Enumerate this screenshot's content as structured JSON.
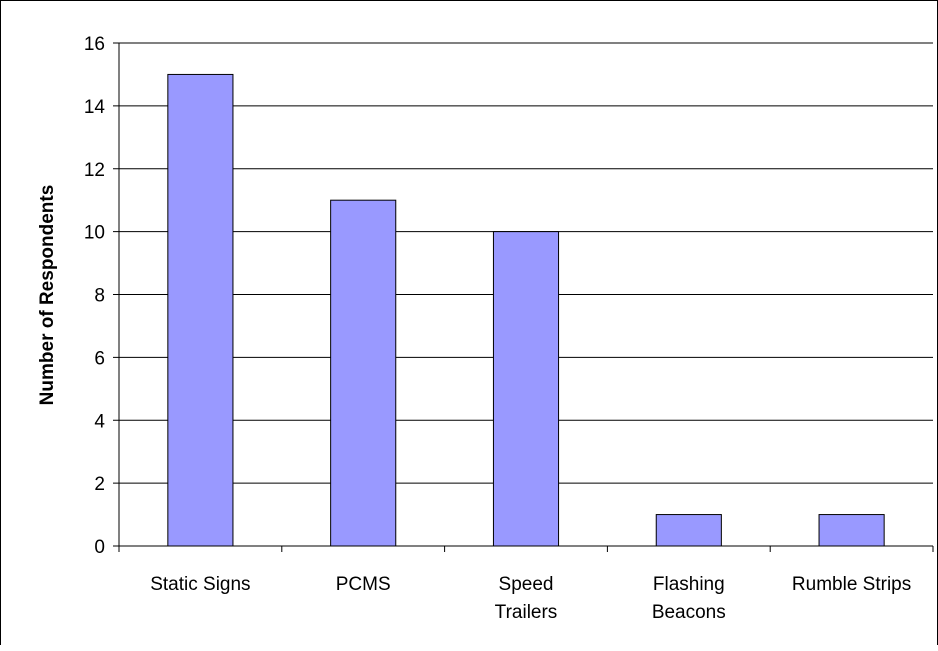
{
  "chart_data": {
    "type": "bar",
    "title": "",
    "xlabel": "",
    "ylabel": "Number of Respondents",
    "categories": [
      [
        "Static Signs"
      ],
      [
        "PCMS"
      ],
      [
        "Speed",
        "Trailers"
      ],
      [
        "Flashing",
        "Beacons"
      ],
      [
        "Rumble Strips"
      ]
    ],
    "values": [
      15,
      11,
      10,
      1,
      1
    ],
    "ylim": [
      0,
      16
    ],
    "yticks": [
      0,
      2,
      4,
      6,
      8,
      10,
      12,
      14,
      16
    ],
    "grid": true,
    "legend": "none",
    "bar_color": "#9999ff",
    "bar_edge_color": "#000000"
  }
}
